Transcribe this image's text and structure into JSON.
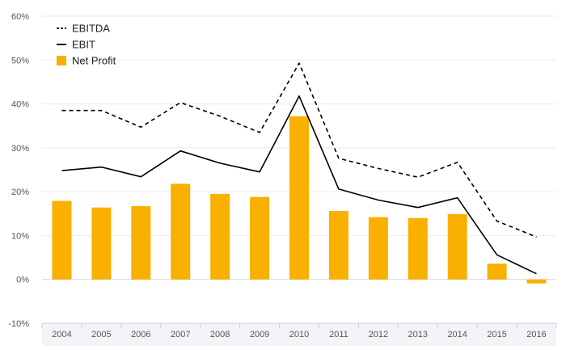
{
  "chart_data": {
    "type": "bar",
    "categories": [
      "2004",
      "2005",
      "2006",
      "2007",
      "2008",
      "2009",
      "2010",
      "2011",
      "2012",
      "2013",
      "2014",
      "2015",
      "2016"
    ],
    "series": [
      {
        "name": "EBITDA",
        "kind": "line",
        "style": "dashed",
        "color": "#000000",
        "values": [
          38.5,
          38.5,
          34.7,
          40.3,
          37.2,
          33.5,
          49.3,
          27.6,
          25.3,
          23.3,
          26.7,
          13.3,
          9.7
        ]
      },
      {
        "name": "EBIT",
        "kind": "line",
        "style": "solid",
        "color": "#000000",
        "values": [
          24.8,
          25.6,
          23.4,
          29.3,
          26.5,
          24.5,
          41.8,
          20.6,
          18.1,
          16.4,
          18.6,
          5.6,
          1.3
        ]
      },
      {
        "name": "Net Profit",
        "kind": "bar",
        "color": "#f9b000",
        "values": [
          17.9,
          16.4,
          16.7,
          21.8,
          19.5,
          18.8,
          37.2,
          15.6,
          14.2,
          14.0,
          14.9,
          3.6,
          -0.9
        ]
      }
    ],
    "yticks": [
      "-10%",
      "0%",
      "10%",
      "20%",
      "30%",
      "40%",
      "50%",
      "60%"
    ],
    "ylim": [
      -10,
      60
    ],
    "grid": true,
    "legend_position": "top-left"
  }
}
